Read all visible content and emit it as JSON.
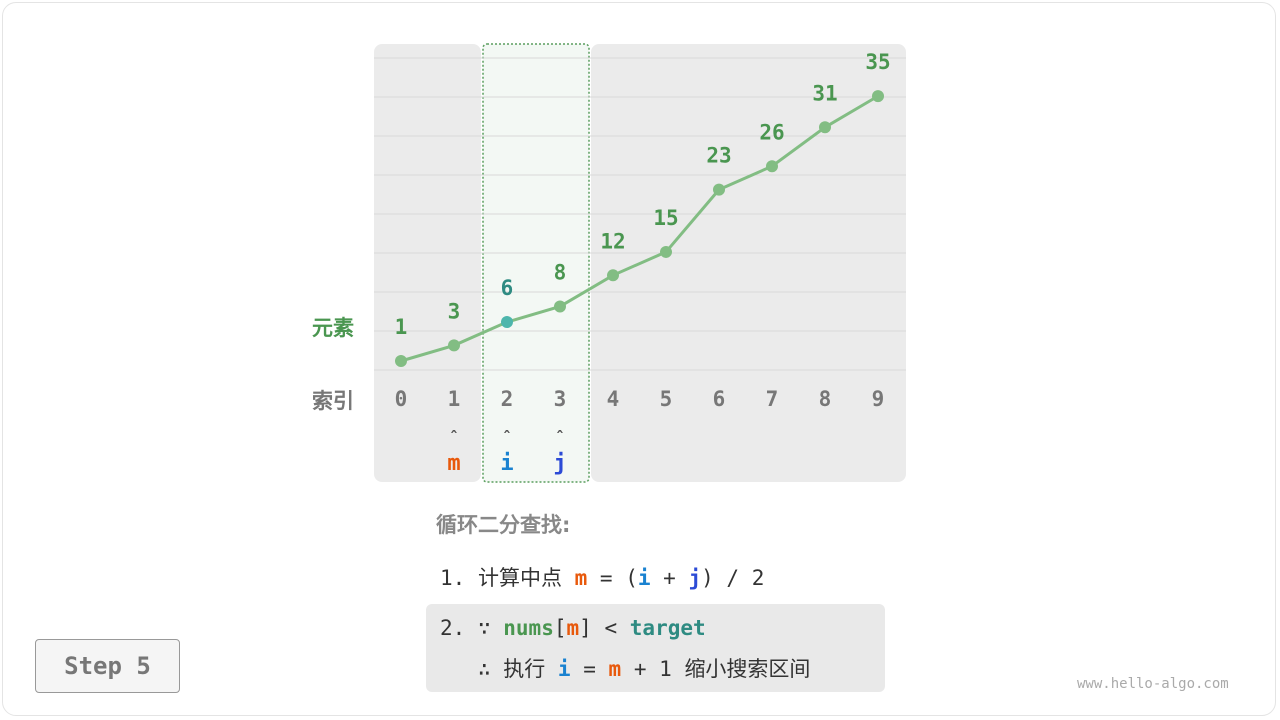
{
  "row_labels": {
    "elements": "元素",
    "indices": "索引"
  },
  "array": {
    "values": [
      1,
      3,
      6,
      8,
      12,
      15,
      23,
      26,
      31,
      35
    ],
    "indices": [
      "0",
      "1",
      "2",
      "3",
      "4",
      "5",
      "6",
      "7",
      "8",
      "9"
    ],
    "highlight_range": [
      2,
      3
    ],
    "mid_index": 2
  },
  "pointers": [
    {
      "index": 1,
      "name": "m",
      "color": "#e8590c"
    },
    {
      "index": 2,
      "name": "i",
      "color": "#1a82d0"
    },
    {
      "index": 3,
      "name": "j",
      "color": "#2c4bd6"
    }
  ],
  "pointer_arrow": "ˆ",
  "colors": {
    "line": "#82bd83",
    "value_text": "#4a9650",
    "mid_point": "#4db6ac",
    "mid_text": "#2e8b82",
    "index_text": "#777777",
    "panel": "#ebebeb",
    "highlight": "#f3f8f4"
  },
  "title": "循环二分查找:",
  "step1": {
    "num": "1.",
    "text": "计算中点",
    "m": "m",
    "eq": "= (",
    "i": "i",
    "plus": "+",
    "j": "j",
    "rest": ") / 2"
  },
  "step2": {
    "num": "2.",
    "because": "∵",
    "nums": "nums",
    "lb": "[",
    "m": "m",
    "rb": "]",
    "lt": "<",
    "target": "target",
    "therefore": "∴",
    "exec": "执行",
    "i": "i",
    "eq": "=",
    "m2": "m",
    "plus1": "+ 1",
    "shrink": "缩小搜索区间"
  },
  "step_badge": "Step 5",
  "watermark": "www.hello-algo.com"
}
